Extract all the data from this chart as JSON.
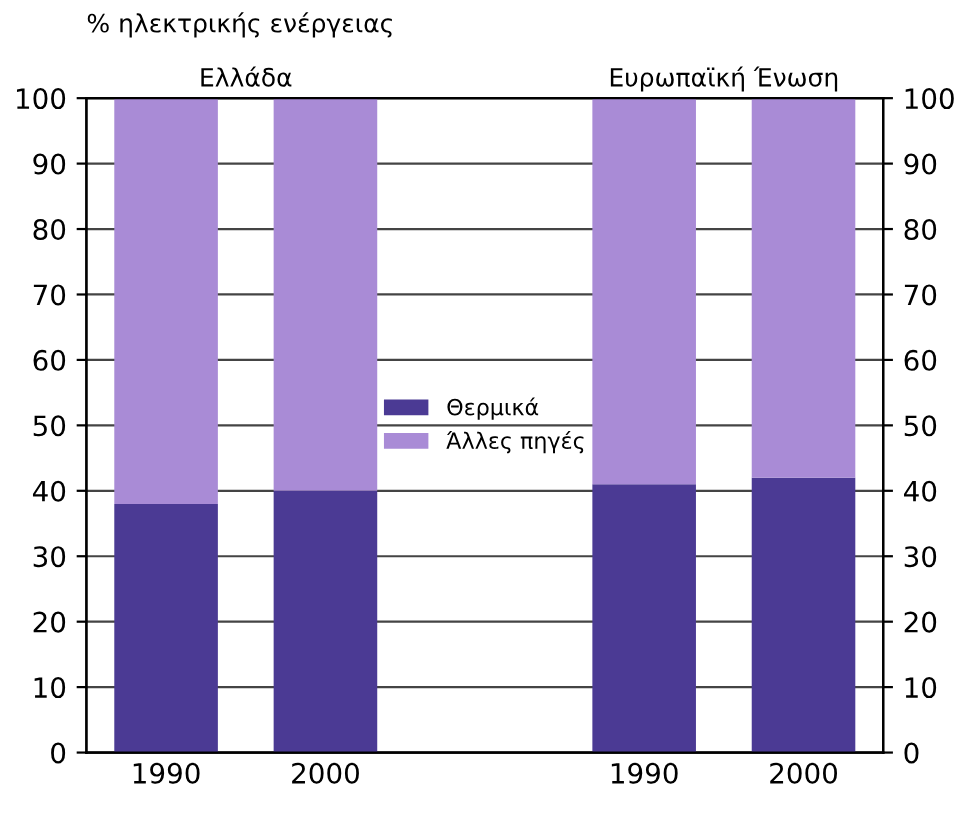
{
  "chart_data": {
    "type": "bar",
    "title": "% ηλεκτρικής ενέργειας",
    "stacked": true,
    "categories": [
      "1990",
      "2000",
      null,
      "1990",
      "2000"
    ],
    "series": [
      {
        "name": "Θερμικά",
        "color": "#4b3a94",
        "values": [
          38,
          40,
          null,
          41,
          42
        ]
      },
      {
        "name": "Άλλες πηγές",
        "color": "#a98bd6",
        "values": [
          62,
          60,
          null,
          59,
          58
        ]
      }
    ],
    "annotations": [
      "Ελλάδα",
      "Ευρωπαϊκή Ένωση"
    ],
    "ylim": [
      0,
      100
    ],
    "yticks": [
      0,
      10,
      20,
      30,
      40,
      50,
      60,
      70,
      80,
      90,
      100
    ],
    "y2lim": [
      0,
      100
    ],
    "y2ticks": [
      0,
      10,
      20,
      30,
      40,
      50,
      60,
      70,
      80,
      90,
      100
    ],
    "grid": "y",
    "legend": "center"
  }
}
